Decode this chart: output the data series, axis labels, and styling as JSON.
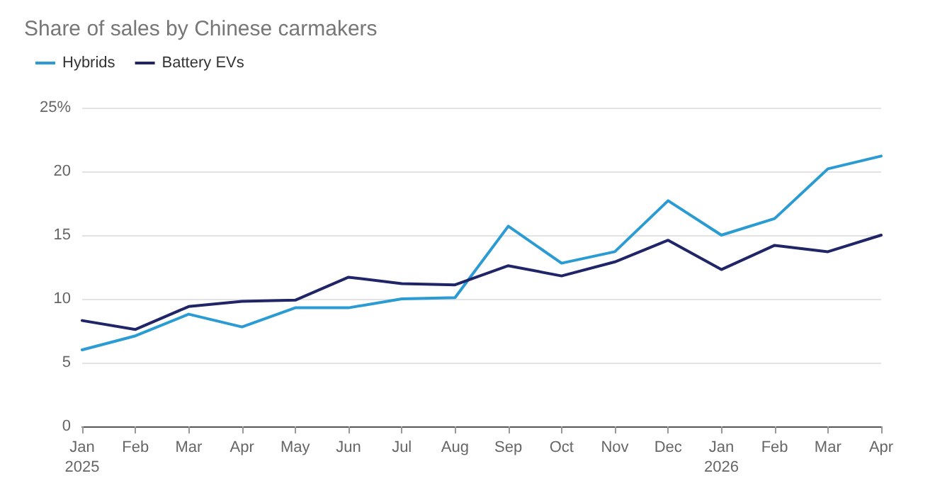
{
  "chart_data": {
    "type": "line",
    "title": "Share of sales by Chinese carmakers",
    "categories": [
      "Jan\n2025",
      "Feb",
      "Mar",
      "Apr",
      "May",
      "Jun",
      "Jul",
      "Aug",
      "Sep",
      "Oct",
      "Nov",
      "Dec",
      "Jan\n2026",
      "Feb",
      "Mar",
      "Apr"
    ],
    "series": [
      {
        "name": "Hybrids",
        "color": "#2b9bd3",
        "values": [
          6.0,
          7.1,
          8.8,
          7.8,
          9.3,
          9.3,
          10.0,
          10.1,
          15.7,
          12.8,
          13.7,
          17.7,
          15.0,
          16.3,
          20.2,
          21.2
        ]
      },
      {
        "name": "Battery EVs",
        "color": "#1f2566",
        "values": [
          8.3,
          7.6,
          9.4,
          9.8,
          9.9,
          11.7,
          11.2,
          11.1,
          12.6,
          11.8,
          12.9,
          14.6,
          12.3,
          14.2,
          13.7,
          15.0
        ]
      }
    ],
    "ylim": [
      0,
      25
    ],
    "yticks": [
      0,
      5,
      10,
      15,
      20,
      {
        "value": 25,
        "label": "25%"
      }
    ],
    "grid": "y",
    "legend": "top left",
    "marker": "none",
    "line_style": "solid"
  }
}
